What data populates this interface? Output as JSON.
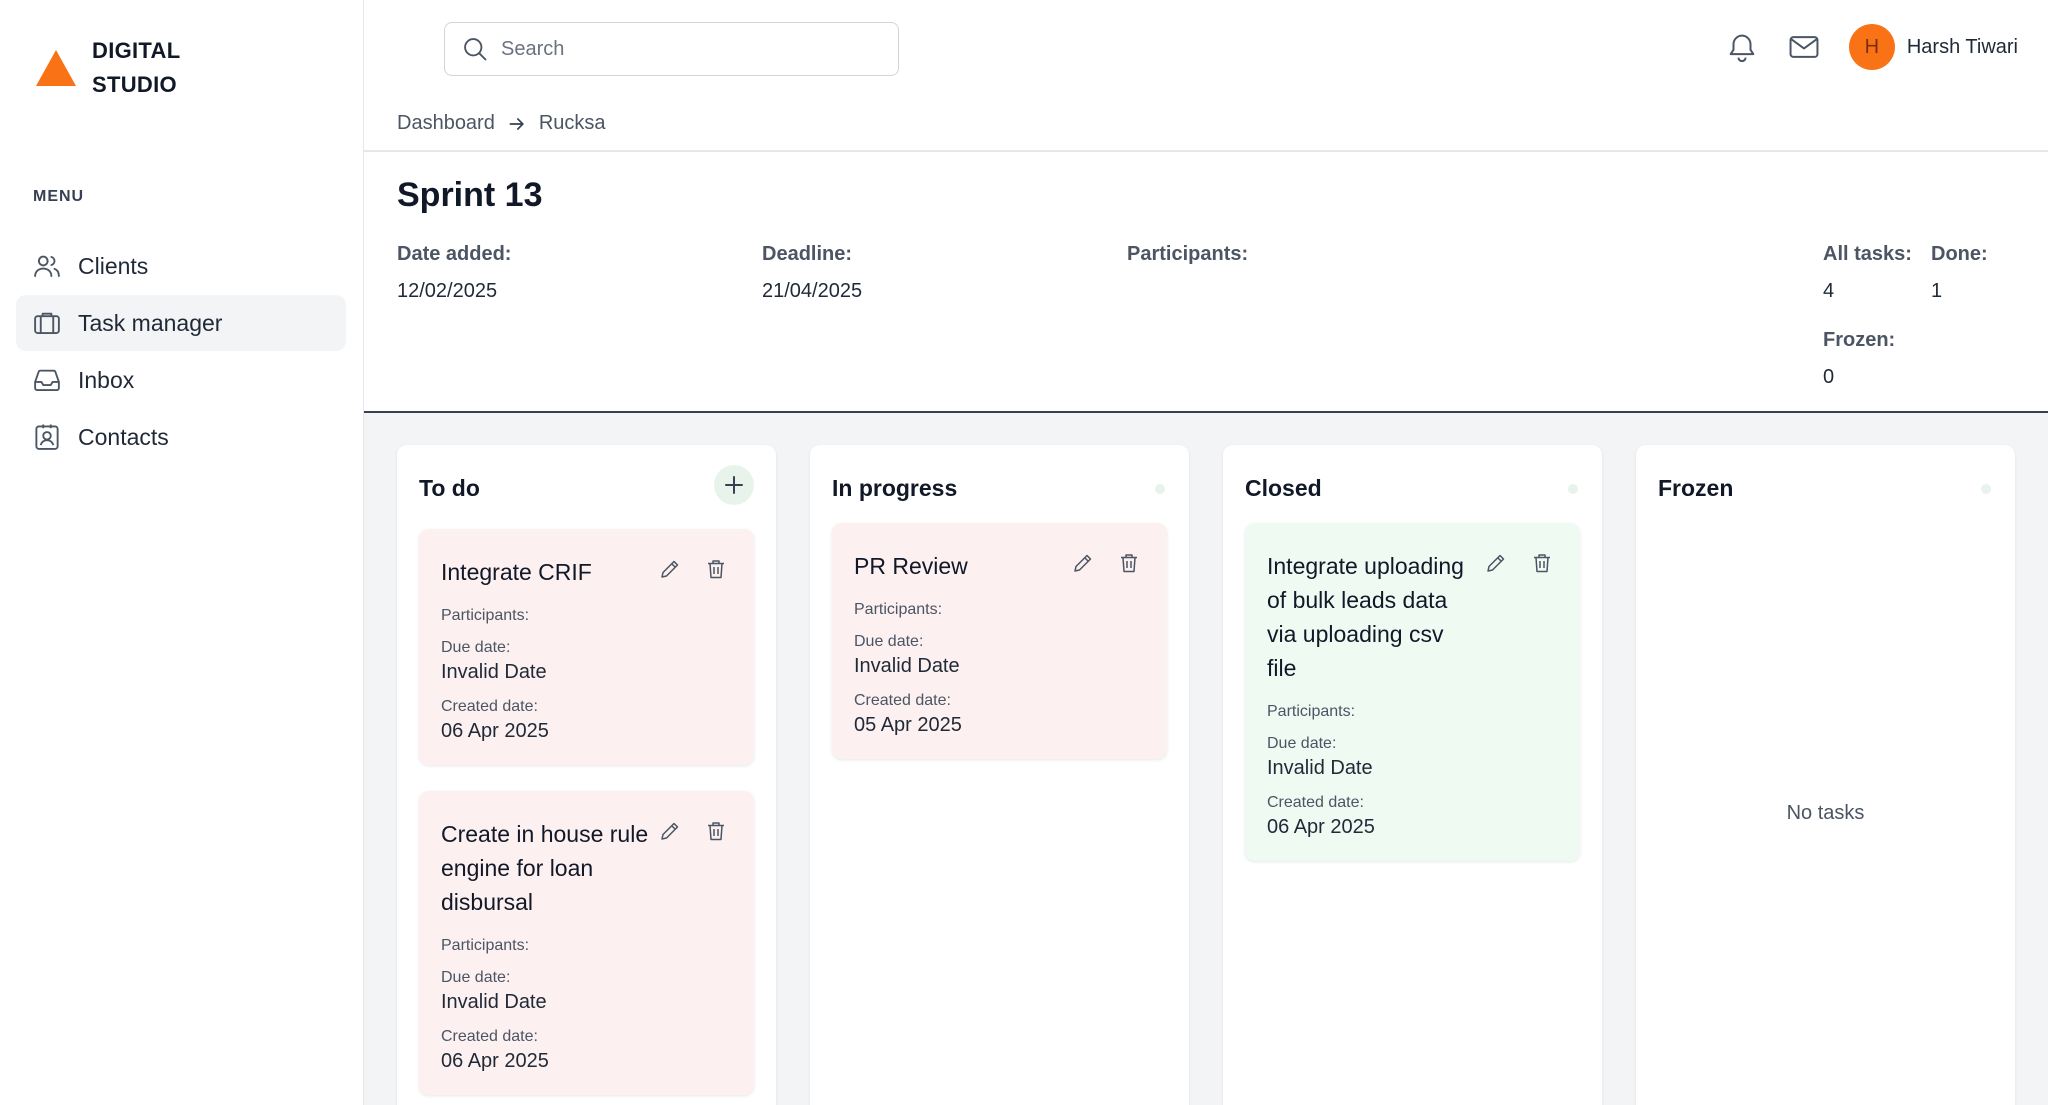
{
  "brand": {
    "line1": "DIGITAL",
    "line2": "STUDIO",
    "accent": "#f97316"
  },
  "sidebar": {
    "menu_title": "MENU",
    "items": [
      {
        "label": "Clients",
        "icon": "users-icon",
        "active": false
      },
      {
        "label": "Task manager",
        "icon": "briefcase-icon",
        "active": true
      },
      {
        "label": "Inbox",
        "icon": "inbox-icon",
        "active": false
      },
      {
        "label": "Contacts",
        "icon": "contact-card-icon",
        "active": false
      }
    ]
  },
  "header": {
    "search_placeholder": "Search",
    "user": {
      "initial": "H",
      "name": "Harsh Tiwari"
    }
  },
  "breadcrumb": {
    "items": [
      "Dashboard",
      "Rucksa"
    ]
  },
  "sprint": {
    "title": "Sprint 13",
    "date_added_label": "Date added:",
    "date_added": "12/02/2025",
    "deadline_label": "Deadline:",
    "deadline": "21/04/2025",
    "participants_label": "Participants:",
    "all_tasks_label": "All tasks:",
    "all_tasks": "4",
    "done_label": "Done:",
    "done": "1",
    "frozen_label": "Frozen:",
    "frozen": "0"
  },
  "columns": [
    {
      "title": "To do",
      "cards": [
        {
          "title": "Integrate CRIF",
          "participants_label": "Participants:",
          "due_label": "Due date:",
          "due": "Invalid Date",
          "created_label": "Created date:",
          "created": "06 Apr 2025"
        },
        {
          "title": "Create in house rule engine for loan disbursal",
          "participants_label": "Participants:",
          "due_label": "Due date:",
          "due": "Invalid Date",
          "created_label": "Created date:",
          "created": "06 Apr 2025"
        }
      ]
    },
    {
      "title": "In progress",
      "cards": [
        {
          "title": "PR Review",
          "participants_label": "Participants:",
          "due_label": "Due date:",
          "due": "Invalid Date",
          "created_label": "Created date:",
          "created": "05 Apr 2025"
        }
      ]
    },
    {
      "title": "Closed",
      "cards": [
        {
          "title": "Integrate uploading of bulk leads data via uploading csv file",
          "participants_label": "Participants:",
          "due_label": "Due date:",
          "due": "Invalid Date",
          "created_label": "Created date:",
          "created": "06 Apr 2025"
        }
      ]
    },
    {
      "title": "Frozen",
      "empty_text": "No tasks",
      "cards": []
    }
  ]
}
